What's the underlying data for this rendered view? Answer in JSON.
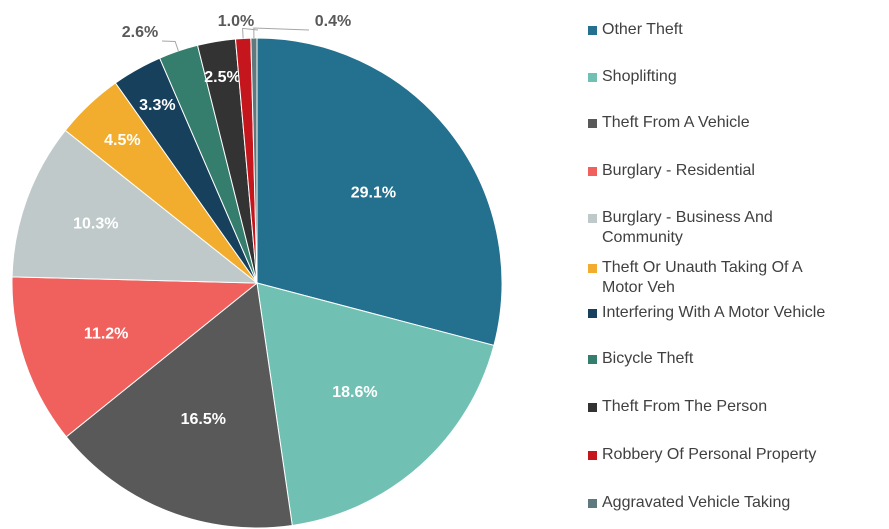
{
  "chart_data": {
    "type": "pie",
    "categories": [
      "Other Theft",
      "Shoplifting",
      "Theft From A Vehicle",
      "Burglary - Residential",
      "Burglary - Business And Community",
      "Theft Or Unauth Taking Of A Motor Veh",
      "Interfering With A Motor Vehicle",
      "Bicycle Theft",
      "Theft From The Person",
      "Robbery Of Personal Property",
      "Aggravated Vehicle Taking"
    ],
    "values": [
      29.1,
      18.6,
      16.5,
      11.2,
      10.3,
      4.5,
      3.3,
      2.6,
      2.5,
      1.0,
      0.4
    ],
    "value_labels": [
      "29.1%",
      "18.6%",
      "16.5%",
      "11.2%",
      "10.3%",
      "4.5%",
      "3.3%",
      "2.6%",
      "2.5%",
      "1.0%",
      "0.4%"
    ],
    "colors": [
      "#23708f",
      "#70c1b3",
      "#595959",
      "#f0605d",
      "#bfc9ca",
      "#f2ad2e",
      "#16405b",
      "#357e6d",
      "#333333",
      "#c4161c",
      "#5f7a7e"
    ],
    "legend": "right"
  }
}
